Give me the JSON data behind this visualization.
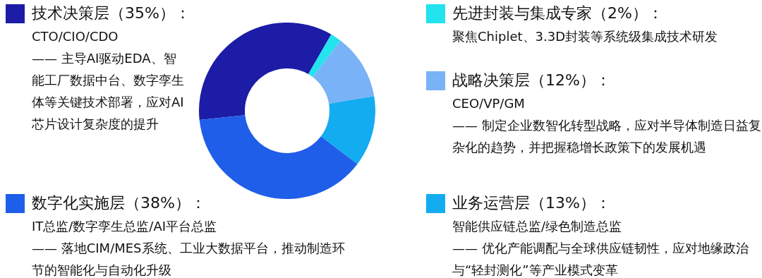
{
  "chart_data": {
    "type": "donut",
    "categories": [
      "技术决策层",
      "先进封装与集成专家",
      "战略决策层",
      "业务运营层",
      "数字化实施层"
    ],
    "value_labels": [
      "（35%）：",
      "（2%）：",
      "（12%）：",
      "（13%）：",
      "（38%）："
    ],
    "legend": "top right",
    "values": [
      35,
      2,
      12,
      13,
      38
    ],
    "colors": [
      "#1c1ca6",
      "#22e3ee",
      "#7ab2f7",
      "#14acf0",
      "#1f5ee8"
    ],
    "annotations": [
      "CTO/CIO/CDO\n—— 主导AI驱动EDA、智能工厂数据中台、数字孪生体等关键技术部署，应对AI芯片设计复杂度的提升",
      "聚焦Chiplet、3.3D封装等系统级集成技术研发",
      "CEO/VP/GM\n—— 制定企业数智化转型战略，应对半导体制造日益复杂化的趋势，并把握稳增长政策下的发展机遇",
      "智能供应链总监/绿色制造总监\n—— 优化产能调配与全球供应链韧性，应对地缘政治与“轻封测化”等产业模式变革",
      "IT总监/数字孪生总监/AI平台总监\n—— 落地CIM/MES系统、工业大数据平台，推动制造环节的智能化与自动化升级"
    ]
  }
}
